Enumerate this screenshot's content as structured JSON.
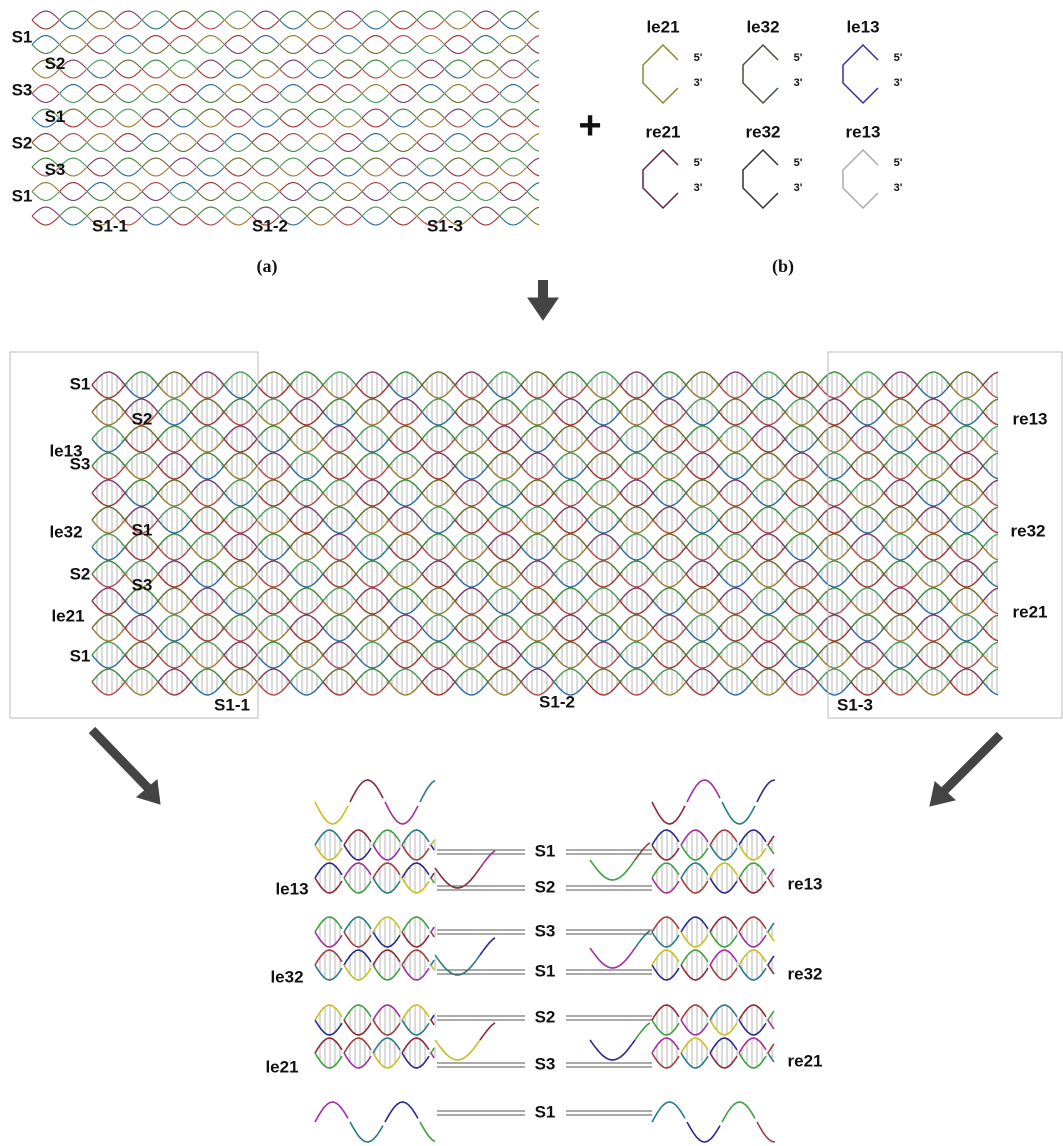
{
  "panel_a": {
    "row_labels": [
      "S1",
      "S2",
      "S3",
      "S1",
      "S2",
      "S3",
      "S1"
    ],
    "segment_labels": [
      "S1-1",
      "S1-2",
      "S1-3"
    ],
    "caption": "(a)"
  },
  "plus": "+",
  "panel_b": {
    "loops": [
      {
        "name": "le21",
        "end5": "5'",
        "end3": "3'"
      },
      {
        "name": "le32",
        "end5": "5'",
        "end3": "3'"
      },
      {
        "name": "le13",
        "end5": "5'",
        "end3": "3'"
      },
      {
        "name": "re21",
        "end5": "5'",
        "end3": "3'"
      },
      {
        "name": "re32",
        "end5": "5'",
        "end3": "3'"
      },
      {
        "name": "re13",
        "end5": "5'",
        "end3": "3'"
      }
    ],
    "caption": "(b)"
  },
  "panel_c": {
    "left_labels": [
      "S1",
      "le13",
      "S2",
      "S3",
      "le32",
      "S1",
      "S2",
      "le21",
      "S3",
      "S1"
    ],
    "right_labels": [
      "re13",
      "re32",
      "re21"
    ],
    "segment_labels": [
      "S1-1",
      "S1-2",
      "S1-3"
    ]
  },
  "panel_d": {
    "left_labels": [
      "le13",
      "le32",
      "le21"
    ],
    "right_labels": [
      "re13",
      "re32",
      "re21"
    ],
    "center_labels": [
      "S1",
      "S2",
      "S3",
      "S1",
      "S2",
      "S3",
      "S1"
    ]
  }
}
